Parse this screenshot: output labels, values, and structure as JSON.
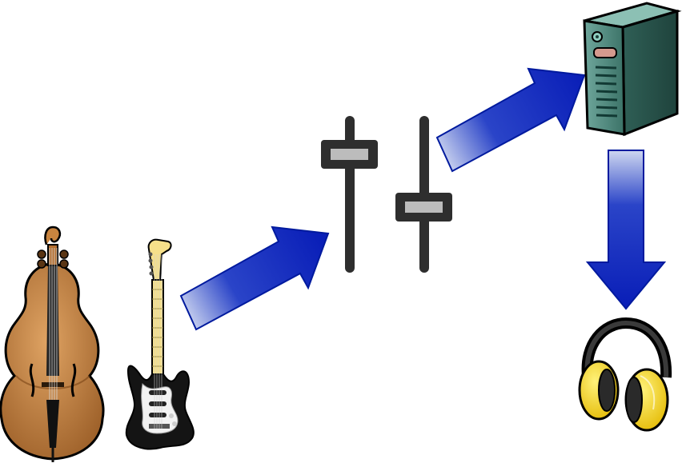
{
  "diagram": {
    "nodes": [
      {
        "id": "double-bass",
        "icon": "double-bass-icon"
      },
      {
        "id": "electric-guitar",
        "icon": "electric-guitar-icon"
      },
      {
        "id": "mixer",
        "icon": "mixer-faders-icon"
      },
      {
        "id": "computer",
        "icon": "computer-tower-icon"
      },
      {
        "id": "headphones",
        "icon": "headphones-icon"
      }
    ],
    "edges": [
      {
        "from": "electric-guitar",
        "to": "mixer"
      },
      {
        "from": "mixer",
        "to": "computer"
      },
      {
        "from": "computer",
        "to": "headphones"
      }
    ]
  },
  "colors": {
    "arrow": "#0a1fb8",
    "arrow_fade": "#c7d0ee",
    "fader_track": "#2e2e2e",
    "fader_knob": "#bcbcbc",
    "bass_wood": "#c8843f",
    "guitar_neck": "#f6e08a",
    "guitar_body": "#141414",
    "computer": "#3d7a70",
    "headphone_cup": "#f5d90e"
  }
}
